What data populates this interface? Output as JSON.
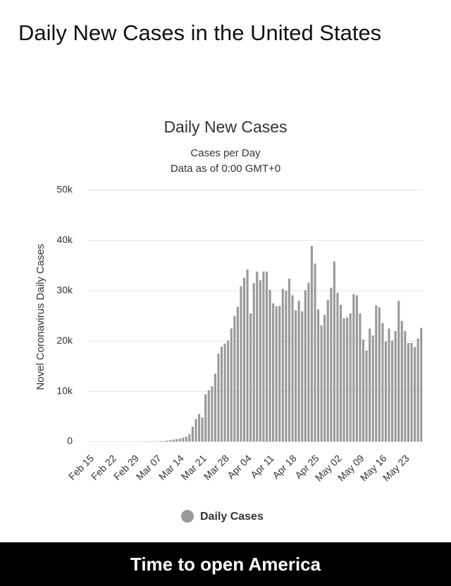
{
  "header": {
    "title": "Daily New Cases in the United States"
  },
  "caption": "Time to open America",
  "chart_data": {
    "type": "bar",
    "title": "Daily New Cases",
    "subtitle": "Cases per Day",
    "note": "Data as of 0:00 GMT+0",
    "y_label": "Novel Coronavirus Daily Cases",
    "grid": true,
    "series": [
      {
        "name": "Daily Cases",
        "color": "#999999",
        "values": [
          0,
          0,
          0,
          0,
          0,
          0,
          0,
          0,
          0,
          0,
          0,
          0,
          0,
          0,
          0,
          0,
          10,
          20,
          30,
          30,
          50,
          70,
          100,
          120,
          200,
          300,
          400,
          500,
          600,
          800,
          1000,
          1500,
          3000,
          4500,
          5500,
          4800,
          9400,
          10200,
          11000,
          13500,
          17500,
          18900,
          19500,
          20100,
          22500,
          25000,
          26800,
          30900,
          32600,
          34200,
          25500,
          31500,
          33800,
          32100,
          33800,
          33800,
          30200,
          27500,
          26900,
          27000,
          30400,
          30000,
          32400,
          29100,
          26100,
          28000,
          25900,
          30100,
          31600,
          38900,
          35400,
          26300,
          23100,
          25200,
          28200,
          30600,
          35800,
          29600,
          27200,
          24500,
          24700,
          25500,
          29300,
          29100,
          25500,
          20300,
          18100,
          22500,
          21100,
          27100,
          26700,
          23600,
          19900,
          22500,
          20100,
          22000,
          28000,
          24000,
          22000,
          19600,
          19600,
          18800,
          20500,
          22600
        ]
      }
    ],
    "categories": [
      "Feb 15",
      null,
      null,
      null,
      null,
      null,
      null,
      "Feb 22",
      null,
      null,
      null,
      null,
      null,
      null,
      "Feb 29",
      null,
      null,
      null,
      null,
      null,
      null,
      "Mar 07",
      null,
      null,
      null,
      null,
      null,
      null,
      "Mar 14",
      null,
      null,
      null,
      null,
      null,
      null,
      "Mar 21",
      null,
      null,
      null,
      null,
      null,
      null,
      "Mar 28",
      null,
      null,
      null,
      null,
      null,
      null,
      "Apr 04",
      null,
      null,
      null,
      null,
      null,
      null,
      "Apr 11",
      null,
      null,
      null,
      null,
      null,
      null,
      "Apr 18",
      null,
      null,
      null,
      null,
      null,
      null,
      "Apr 25",
      null,
      null,
      null,
      null,
      null,
      null,
      "May 02",
      null,
      null,
      null,
      null,
      null,
      null,
      "May 09",
      null,
      null,
      null,
      null,
      null,
      null,
      "May 16",
      null,
      null,
      null,
      null,
      null,
      null,
      "May 23",
      null,
      null,
      null,
      null,
      null
    ],
    "ylim": [
      0,
      50000
    ],
    "yticks": [
      0,
      {
        "value": 10000,
        "label": "10k"
      },
      {
        "value": 20000,
        "label": "20k"
      },
      {
        "value": 30000,
        "label": "30k"
      },
      {
        "value": 40000,
        "label": "40k"
      },
      {
        "value": 50000,
        "label": "50k"
      }
    ]
  }
}
